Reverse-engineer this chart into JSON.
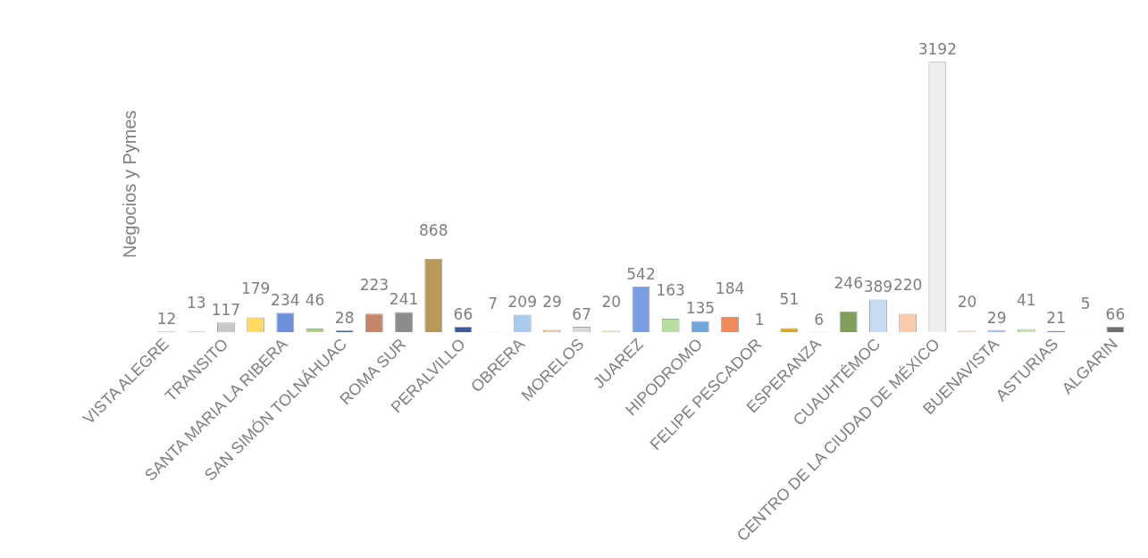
{
  "chart_data": {
    "type": "bar",
    "ylabel": "Negocios y Pymes",
    "categories": [
      "VISTA ALEGRE",
      null,
      "TRANSITO",
      null,
      "SANTA MARIA LA RIBERA",
      null,
      "SAN SIMÓN TOLNÁHUAC",
      null,
      "ROMA SUR",
      null,
      "PERALVILLO",
      null,
      "OBRERA",
      null,
      "MORELOS",
      null,
      "JUAREZ",
      null,
      "HIPODROMO",
      null,
      "FELIPE PESCADOR",
      null,
      "ESPERANZA",
      null,
      "CUAUHTÉMOC",
      null,
      "CENTRO DE LA CIUDAD DE MÉXICO",
      null,
      "BUENAVISTA",
      null,
      "ASTURIAS",
      null,
      "ALGARIN"
    ],
    "values": [
      12,
      13,
      117,
      179,
      234,
      46,
      28,
      223,
      241,
      868,
      66,
      7,
      209,
      29,
      67,
      20,
      542,
      163,
      135,
      184,
      1,
      51,
      6,
      246,
      389,
      220,
      3192,
      20,
      29,
      41,
      21,
      5,
      66
    ],
    "colors": [
      "#8faadc",
      "#f4b183",
      "#c9c9c9",
      "#ffd966",
      "#6f8fd8",
      "#a9d18e",
      "#41699e",
      "#c5856a",
      "#8c8c8c",
      "#b8995a",
      "#3d5a96",
      "#5e8a3f",
      "#a9cbee",
      "#f8c1a0",
      "#d9d9d9",
      "#ffe699",
      "#7b9ee0",
      "#b9dda0",
      "#6fa8dc",
      "#f08a5d",
      "#b0b0b0",
      "#d4a72c",
      "#5a78c0",
      "#7ea05a",
      "#c6dcf2",
      "#f8cbad",
      "#eeeeee",
      "#ffe699",
      "#a4bde8",
      "#c5e0b4",
      "#2f4f7f",
      "#b36a50",
      "#707070"
    ],
    "data_labels": true,
    "legend": false,
    "grid": false
  }
}
